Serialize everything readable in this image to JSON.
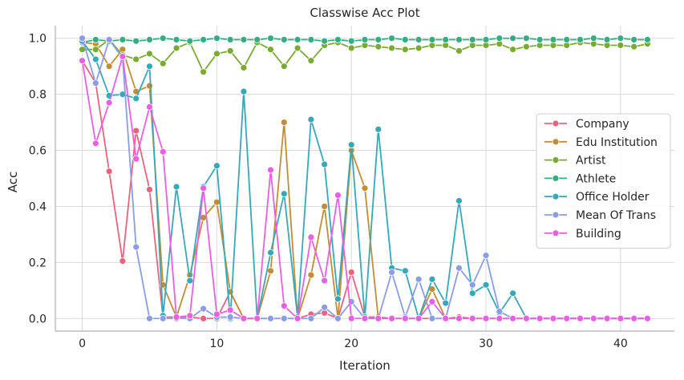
{
  "chart_data": {
    "type": "line",
    "title": "Classwise Acc Plot",
    "xlabel": "Iteration",
    "ylabel": "Acc",
    "xlim": [
      -2,
      44
    ],
    "ylim": [
      -0.045,
      1.045
    ],
    "xticks": [
      0,
      10,
      20,
      30,
      40
    ],
    "yticks": [
      0.0,
      0.2,
      0.4,
      0.6,
      0.8,
      1.0
    ],
    "ytick_labels": [
      "0.0",
      "0.2",
      "0.4",
      "0.6",
      "0.8",
      "1.0"
    ],
    "grid": true,
    "legend_position": "center-right",
    "x": [
      0,
      1,
      2,
      3,
      4,
      5,
      6,
      7,
      8,
      9,
      10,
      11,
      12,
      13,
      14,
      15,
      16,
      17,
      18,
      19,
      20,
      21,
      22,
      23,
      24,
      25,
      26,
      27,
      28,
      29,
      30,
      31,
      32,
      33,
      34,
      35,
      36,
      37,
      38,
      39,
      40,
      41,
      42
    ],
    "series": [
      {
        "name": "Company",
        "color": "#e8647c",
        "values": [
          0.92,
          0.84,
          0.525,
          0.205,
          0.67,
          0.46,
          0.005,
          0.005,
          0.005,
          0.0,
          0.0,
          0.095,
          0.0,
          0.0,
          0.0,
          0.0,
          0.0,
          0.015,
          0.02,
          0.0,
          0.165,
          0.005,
          0.005,
          0.0,
          0.0,
          0.0,
          0.0,
          0.0,
          0.005,
          0.0,
          0.0,
          0.0,
          0.0,
          0.0,
          0.0,
          0.0,
          0.0,
          0.0,
          0.0,
          0.0,
          0.0,
          0.0,
          0.0
        ]
      },
      {
        "name": "Edu Institution",
        "color": "#c28d35",
        "values": [
          0.985,
          0.98,
          0.9,
          0.96,
          0.81,
          0.83,
          0.12,
          0.005,
          0.155,
          0.36,
          0.415,
          0.095,
          0.0,
          0.0,
          0.17,
          0.7,
          0.0,
          0.155,
          0.4,
          0.0,
          0.6,
          0.465,
          0.0,
          0.0,
          0.0,
          0.0,
          0.105,
          0.0,
          0.0,
          0.0,
          0.0,
          0.0,
          0.0,
          0.0,
          0.0,
          0.0,
          0.0,
          0.0,
          0.0,
          0.0,
          0.0,
          0.0,
          0.0
        ]
      },
      {
        "name": "Artist",
        "color": "#7aaa32",
        "values": [
          0.96,
          0.96,
          0.995,
          0.94,
          0.925,
          0.945,
          0.91,
          0.965,
          0.985,
          0.88,
          0.945,
          0.955,
          0.895,
          0.985,
          0.96,
          0.9,
          0.965,
          0.92,
          0.975,
          0.985,
          0.965,
          0.975,
          0.97,
          0.965,
          0.96,
          0.965,
          0.975,
          0.975,
          0.955,
          0.975,
          0.975,
          0.98,
          0.96,
          0.97,
          0.975,
          0.975,
          0.975,
          0.985,
          0.98,
          0.975,
          0.975,
          0.97,
          0.98
        ]
      },
      {
        "name": "Athlete",
        "color": "#34ad82",
        "values": [
          0.985,
          0.995,
          0.99,
          0.995,
          0.99,
          0.995,
          1.0,
          0.995,
          0.99,
          0.995,
          1.0,
          0.995,
          0.995,
          0.995,
          1.0,
          0.995,
          0.995,
          0.995,
          0.99,
          0.995,
          0.99,
          0.995,
          0.995,
          1.0,
          0.995,
          0.995,
          0.995,
          0.995,
          0.995,
          0.995,
          0.995,
          1.0,
          1.0,
          1.0,
          0.995,
          0.995,
          0.995,
          0.995,
          1.0,
          0.995,
          1.0,
          0.995,
          0.995
        ]
      },
      {
        "name": "Office Holder",
        "color": "#36a8b8",
        "values": [
          0.99,
          0.925,
          0.795,
          0.8,
          0.785,
          0.9,
          0.01,
          0.47,
          0.135,
          0.47,
          0.545,
          0.0,
          0.81,
          0.0,
          0.235,
          0.445,
          0.005,
          0.71,
          0.55,
          0.07,
          0.62,
          0.005,
          0.675,
          0.18,
          0.17,
          0.0,
          0.14,
          0.055,
          0.42,
          0.09,
          0.12,
          0.02,
          0.09,
          0.0,
          0.0,
          0.0,
          0.0,
          0.0,
          0.0,
          0.0,
          0.0,
          0.0,
          0.0
        ]
      },
      {
        "name": "Mean Of Trans",
        "color": "#8a9de8",
        "values": [
          1.0,
          0.84,
          0.995,
          0.93,
          0.255,
          0.0,
          0.0,
          0.0,
          0.0,
          0.035,
          0.005,
          0.005,
          0.0,
          0.0,
          0.0,
          0.0,
          0.0,
          0.0,
          0.04,
          0.0,
          0.06,
          0.0,
          0.0,
          0.165,
          0.005,
          0.14,
          0.0,
          0.0,
          0.18,
          0.12,
          0.225,
          0.025,
          0.0,
          0.0,
          0.0,
          0.0,
          0.0,
          0.0,
          0.0,
          0.0,
          0.0,
          0.0,
          0.0
        ]
      },
      {
        "name": "Building",
        "color": "#ea5fe3",
        "values": [
          0.92,
          0.625,
          0.77,
          0.935,
          0.57,
          0.755,
          0.595,
          0.005,
          0.01,
          0.465,
          0.015,
          0.03,
          0.0,
          0.0,
          0.53,
          0.045,
          0.0,
          0.29,
          0.135,
          0.44,
          0.0,
          0.0,
          0.0,
          0.0,
          0.0,
          0.0,
          0.06,
          0.0,
          0.0,
          0.0,
          0.0,
          0.0,
          0.0,
          0.0,
          0.0,
          0.0,
          0.0,
          0.0,
          0.0,
          0.0,
          0.0,
          0.0,
          0.0
        ]
      }
    ]
  }
}
